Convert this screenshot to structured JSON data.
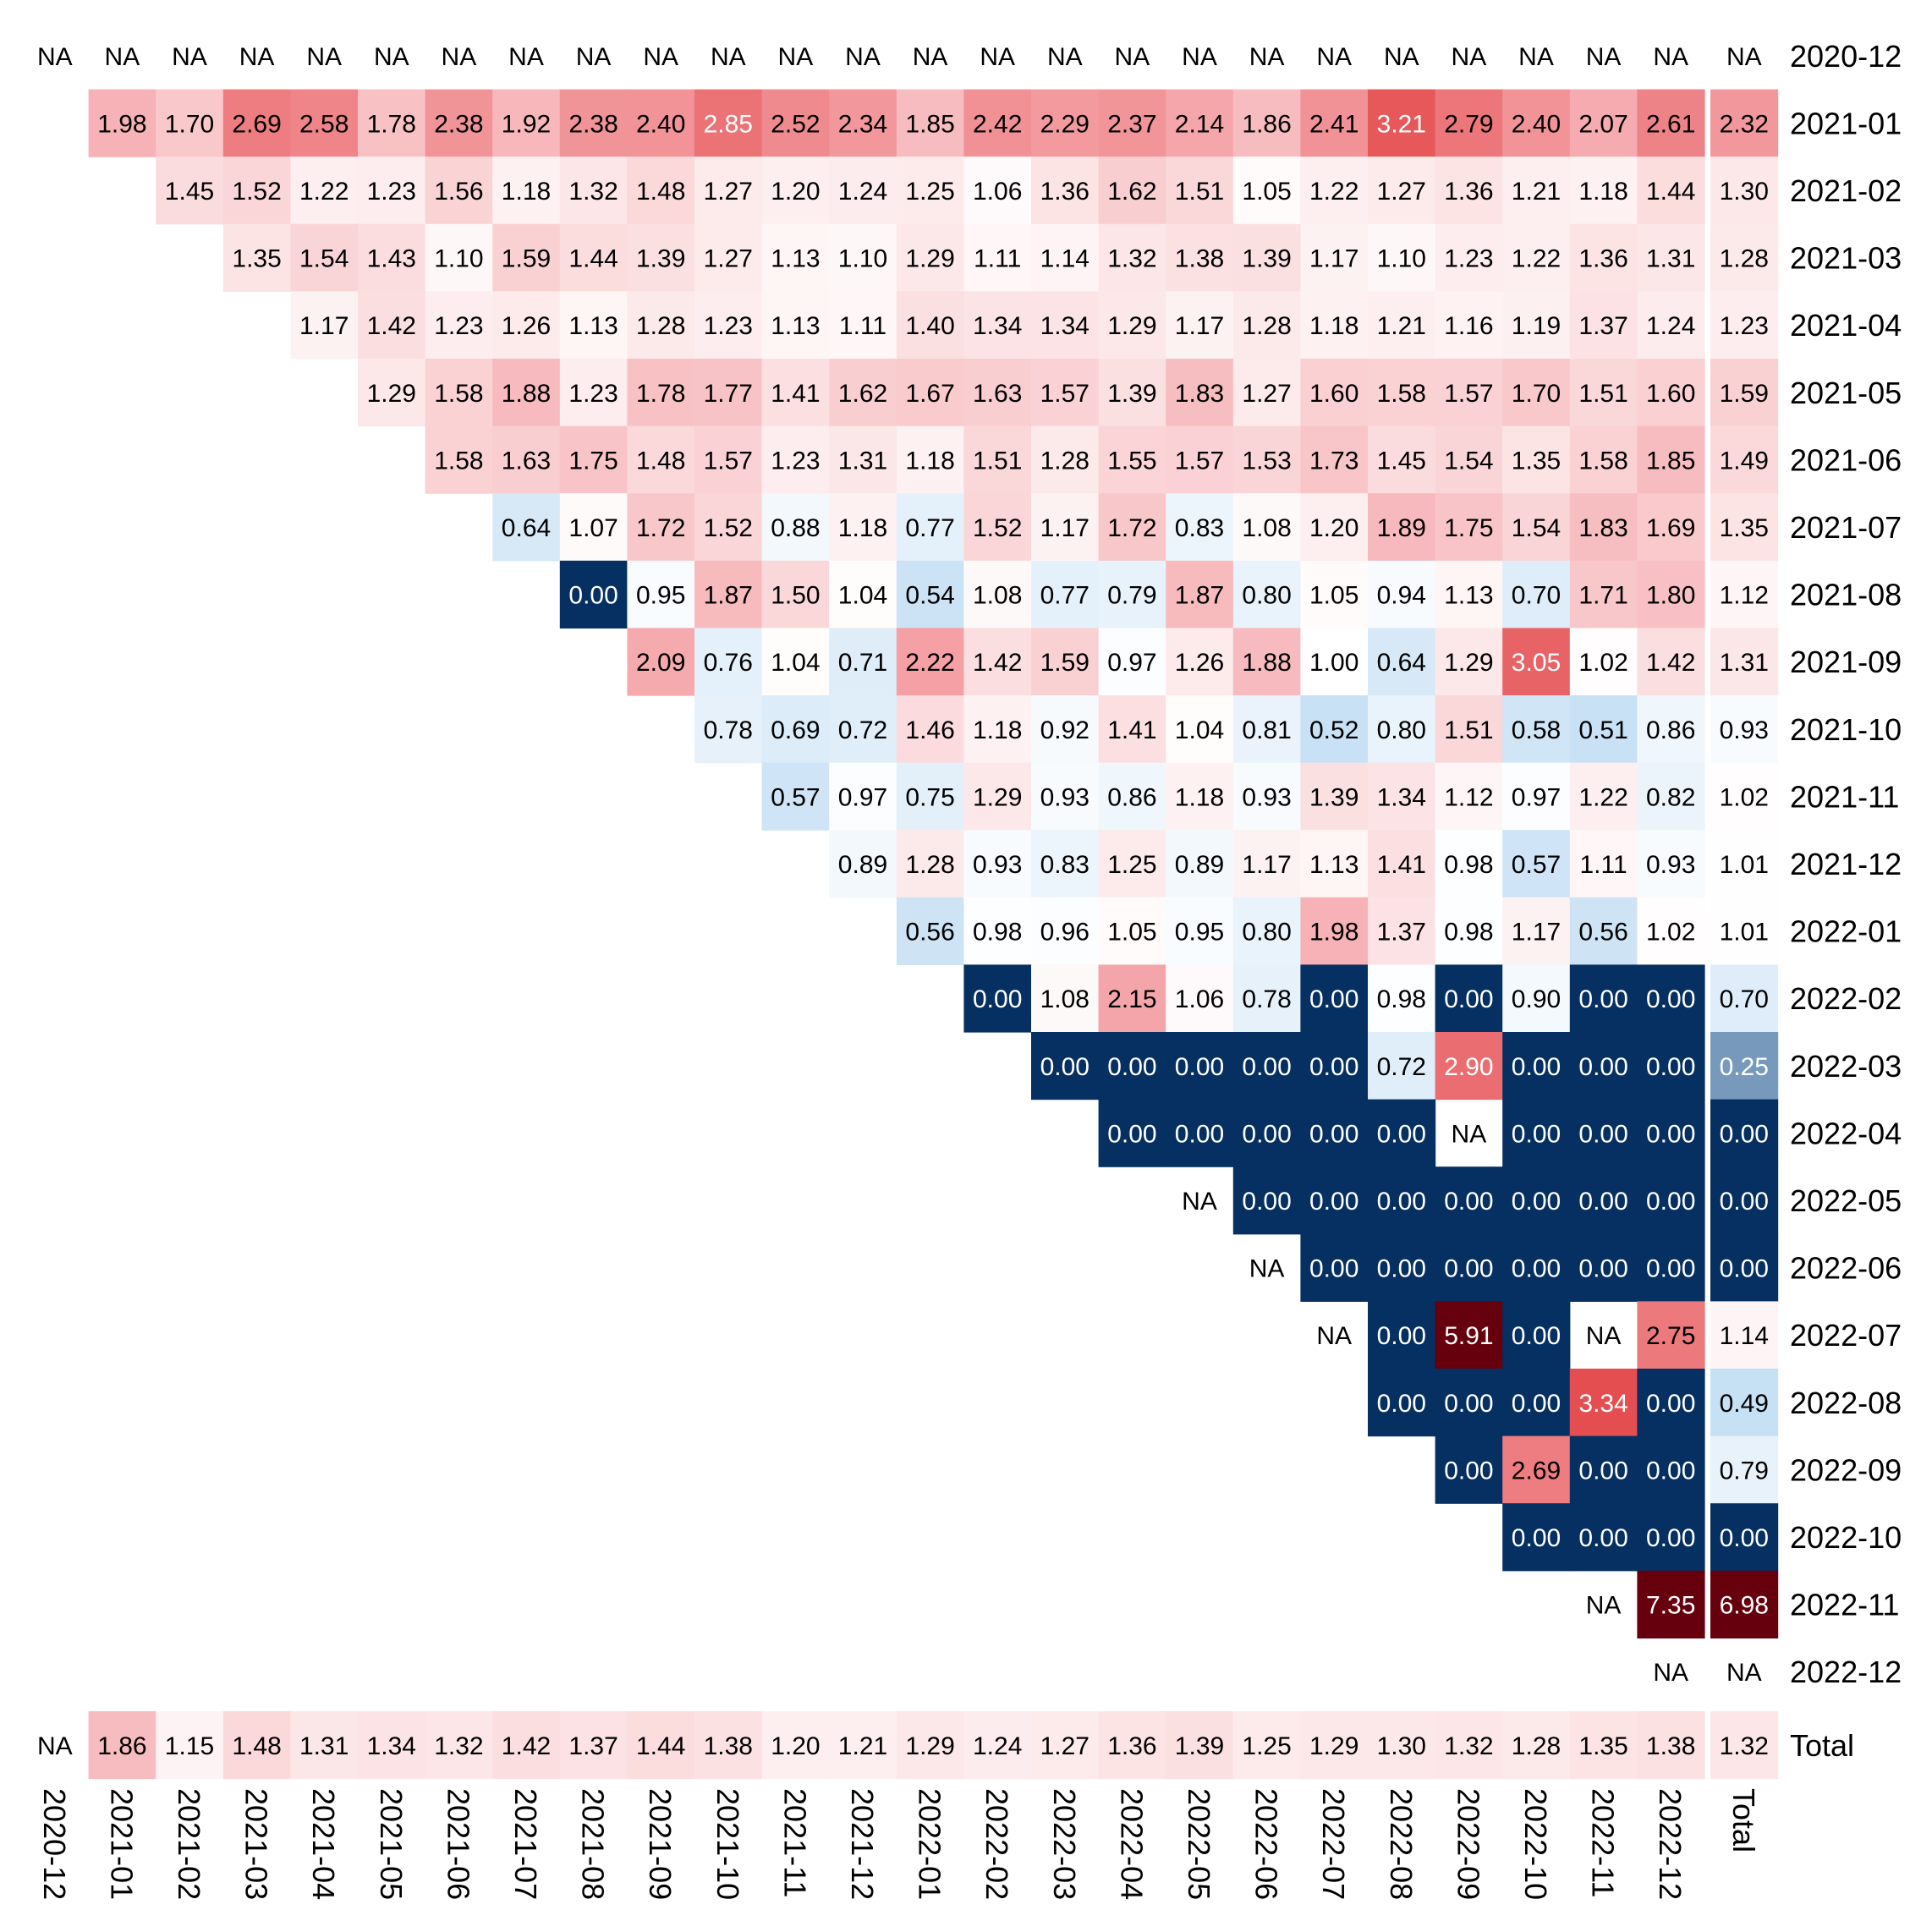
{
  "chart_data": {
    "type": "heatmap",
    "title": "",
    "xlabel": "",
    "ylabel": "",
    "grid": false,
    "legend": "none",
    "rows": [
      "2020-12",
      "2021-01",
      "2021-02",
      "2021-03",
      "2021-04",
      "2021-05",
      "2021-06",
      "2021-07",
      "2021-08",
      "2021-09",
      "2021-10",
      "2021-11",
      "2021-12",
      "2022-01",
      "2022-02",
      "2022-03",
      "2022-04",
      "2022-05",
      "2022-06",
      "2022-07",
      "2022-08",
      "2022-09",
      "2022-10",
      "2022-11",
      "2022-12"
    ],
    "columns": [
      "2020-12",
      "2021-01",
      "2021-02",
      "2021-03",
      "2021-04",
      "2021-05",
      "2021-06",
      "2021-07",
      "2021-08",
      "2021-09",
      "2021-10",
      "2021-11",
      "2021-12",
      "2022-01",
      "2022-02",
      "2022-03",
      "2022-04",
      "2022-05",
      "2022-06",
      "2022-07",
      "2022-08",
      "2022-09",
      "2022-10",
      "2022-11",
      "2022-12"
    ],
    "total_label": "Total",
    "na_label": "NA",
    "values": [
      [
        "NA",
        "NA",
        "NA",
        "NA",
        "NA",
        "NA",
        "NA",
        "NA",
        "NA",
        "NA",
        "NA",
        "NA",
        "NA",
        "NA",
        "NA",
        "NA",
        "NA",
        "NA",
        "NA",
        "NA",
        "NA",
        "NA",
        "NA",
        "NA",
        "NA"
      ],
      [
        null,
        "1.98",
        "1.70",
        "2.69",
        "2.58",
        "1.78",
        "2.38",
        "1.92",
        "2.38",
        "2.40",
        "2.85",
        "2.52",
        "2.34",
        "1.85",
        "2.42",
        "2.29",
        "2.37",
        "2.14",
        "1.86",
        "2.41",
        "3.21",
        "2.79",
        "2.40",
        "2.07",
        "2.61"
      ],
      [
        null,
        null,
        "1.45",
        "1.52",
        "1.22",
        "1.23",
        "1.56",
        "1.18",
        "1.32",
        "1.48",
        "1.27",
        "1.20",
        "1.24",
        "1.25",
        "1.06",
        "1.36",
        "1.62",
        "1.51",
        "1.05",
        "1.22",
        "1.27",
        "1.36",
        "1.21",
        "1.18",
        "1.44"
      ],
      [
        null,
        null,
        null,
        "1.35",
        "1.54",
        "1.43",
        "1.10",
        "1.59",
        "1.44",
        "1.39",
        "1.27",
        "1.13",
        "1.10",
        "1.29",
        "1.11",
        "1.14",
        "1.32",
        "1.38",
        "1.39",
        "1.17",
        "1.10",
        "1.23",
        "1.22",
        "1.36",
        "1.31"
      ],
      [
        null,
        null,
        null,
        null,
        "1.17",
        "1.42",
        "1.23",
        "1.26",
        "1.13",
        "1.28",
        "1.23",
        "1.13",
        "1.11",
        "1.40",
        "1.34",
        "1.34",
        "1.29",
        "1.17",
        "1.28",
        "1.18",
        "1.21",
        "1.16",
        "1.19",
        "1.37",
        "1.24"
      ],
      [
        null,
        null,
        null,
        null,
        null,
        "1.29",
        "1.58",
        "1.88",
        "1.23",
        "1.78",
        "1.77",
        "1.41",
        "1.62",
        "1.67",
        "1.63",
        "1.57",
        "1.39",
        "1.83",
        "1.27",
        "1.60",
        "1.58",
        "1.57",
        "1.70",
        "1.51",
        "1.60"
      ],
      [
        null,
        null,
        null,
        null,
        null,
        null,
        "1.58",
        "1.63",
        "1.75",
        "1.48",
        "1.57",
        "1.23",
        "1.31",
        "1.18",
        "1.51",
        "1.28",
        "1.55",
        "1.57",
        "1.53",
        "1.73",
        "1.45",
        "1.54",
        "1.35",
        "1.58",
        "1.85"
      ],
      [
        null,
        null,
        null,
        null,
        null,
        null,
        null,
        "0.64",
        "1.07",
        "1.72",
        "1.52",
        "0.88",
        "1.18",
        "0.77",
        "1.52",
        "1.17",
        "1.72",
        "0.83",
        "1.08",
        "1.20",
        "1.89",
        "1.75",
        "1.54",
        "1.83",
        "1.69"
      ],
      [
        null,
        null,
        null,
        null,
        null,
        null,
        null,
        null,
        "0.00",
        "0.95",
        "1.87",
        "1.50",
        "1.04",
        "0.54",
        "1.08",
        "0.77",
        "0.79",
        "1.87",
        "0.80",
        "1.05",
        "0.94",
        "1.13",
        "0.70",
        "1.71",
        "1.80"
      ],
      [
        null,
        null,
        null,
        null,
        null,
        null,
        null,
        null,
        null,
        "2.09",
        "0.76",
        "1.04",
        "0.71",
        "2.22",
        "1.42",
        "1.59",
        "0.97",
        "1.26",
        "1.88",
        "1.00",
        "0.64",
        "1.29",
        "3.05",
        "1.02",
        "1.42"
      ],
      [
        null,
        null,
        null,
        null,
        null,
        null,
        null,
        null,
        null,
        null,
        "0.78",
        "0.69",
        "0.72",
        "1.46",
        "1.18",
        "0.92",
        "1.41",
        "1.04",
        "0.81",
        "0.52",
        "0.80",
        "1.51",
        "0.58",
        "0.51",
        "0.86"
      ],
      [
        null,
        null,
        null,
        null,
        null,
        null,
        null,
        null,
        null,
        null,
        null,
        "0.57",
        "0.97",
        "0.75",
        "1.29",
        "0.93",
        "0.86",
        "1.18",
        "0.93",
        "1.39",
        "1.34",
        "1.12",
        "0.97",
        "1.22",
        "0.82"
      ],
      [
        null,
        null,
        null,
        null,
        null,
        null,
        null,
        null,
        null,
        null,
        null,
        null,
        "0.89",
        "1.28",
        "0.93",
        "0.83",
        "1.25",
        "0.89",
        "1.17",
        "1.13",
        "1.41",
        "0.98",
        "0.57",
        "1.11",
        "0.93"
      ],
      [
        null,
        null,
        null,
        null,
        null,
        null,
        null,
        null,
        null,
        null,
        null,
        null,
        null,
        "0.56",
        "0.98",
        "0.96",
        "1.05",
        "0.95",
        "0.80",
        "1.98",
        "1.37",
        "0.98",
        "1.17",
        "0.56",
        "1.02"
      ],
      [
        null,
        null,
        null,
        null,
        null,
        null,
        null,
        null,
        null,
        null,
        null,
        null,
        null,
        null,
        "0.00",
        "1.08",
        "2.15",
        "1.06",
        "0.78",
        "0.00",
        "0.98",
        "0.00",
        "0.90",
        "0.00",
        "0.00"
      ],
      [
        null,
        null,
        null,
        null,
        null,
        null,
        null,
        null,
        null,
        null,
        null,
        null,
        null,
        null,
        null,
        "0.00",
        "0.00",
        "0.00",
        "0.00",
        "0.00",
        "0.72",
        "2.90",
        "0.00",
        "0.00",
        "0.00"
      ],
      [
        null,
        null,
        null,
        null,
        null,
        null,
        null,
        null,
        null,
        null,
        null,
        null,
        null,
        null,
        null,
        null,
        "0.00",
        "0.00",
        "0.00",
        "0.00",
        "0.00",
        "NA",
        "0.00",
        "0.00",
        "0.00"
      ],
      [
        null,
        null,
        null,
        null,
        null,
        null,
        null,
        null,
        null,
        null,
        null,
        null,
        null,
        null,
        null,
        null,
        null,
        "NA",
        "0.00",
        "0.00",
        "0.00",
        "0.00",
        "0.00",
        "0.00",
        "0.00"
      ],
      [
        null,
        null,
        null,
        null,
        null,
        null,
        null,
        null,
        null,
        null,
        null,
        null,
        null,
        null,
        null,
        null,
        null,
        null,
        "NA",
        "0.00",
        "0.00",
        "0.00",
        "0.00",
        "0.00",
        "0.00"
      ],
      [
        null,
        null,
        null,
        null,
        null,
        null,
        null,
        null,
        null,
        null,
        null,
        null,
        null,
        null,
        null,
        null,
        null,
        null,
        null,
        "NA",
        "0.00",
        "5.91",
        "0.00",
        "NA",
        "2.75"
      ],
      [
        null,
        null,
        null,
        null,
        null,
        null,
        null,
        null,
        null,
        null,
        null,
        null,
        null,
        null,
        null,
        null,
        null,
        null,
        null,
        null,
        "0.00",
        "0.00",
        "0.00",
        "3.34",
        "0.00"
      ],
      [
        null,
        null,
        null,
        null,
        null,
        null,
        null,
        null,
        null,
        null,
        null,
        null,
        null,
        null,
        null,
        null,
        null,
        null,
        null,
        null,
        null,
        "0.00",
        "2.69",
        "0.00",
        "0.00"
      ],
      [
        null,
        null,
        null,
        null,
        null,
        null,
        null,
        null,
        null,
        null,
        null,
        null,
        null,
        null,
        null,
        null,
        null,
        null,
        null,
        null,
        null,
        null,
        "0.00",
        "0.00",
        "0.00"
      ],
      [
        null,
        null,
        null,
        null,
        null,
        null,
        null,
        null,
        null,
        null,
        null,
        null,
        null,
        null,
        null,
        null,
        null,
        null,
        null,
        null,
        null,
        null,
        null,
        "NA",
        "7.35"
      ],
      [
        null,
        null,
        null,
        null,
        null,
        null,
        null,
        null,
        null,
        null,
        null,
        null,
        null,
        null,
        null,
        null,
        null,
        null,
        null,
        null,
        null,
        null,
        null,
        null,
        "NA"
      ]
    ],
    "row_totals": [
      "NA",
      "2.32",
      "1.30",
      "1.28",
      "1.23",
      "1.59",
      "1.49",
      "1.35",
      "1.12",
      "1.31",
      "0.93",
      "1.02",
      "1.01",
      "1.01",
      "0.70",
      "0.25",
      "0.00",
      "0.00",
      "0.00",
      "1.14",
      "0.49",
      "0.79",
      "0.00",
      "6.98",
      "NA"
    ],
    "column_totals": [
      "NA",
      "1.86",
      "1.15",
      "1.48",
      "1.31",
      "1.34",
      "1.32",
      "1.42",
      "1.37",
      "1.44",
      "1.38",
      "1.20",
      "1.21",
      "1.29",
      "1.24",
      "1.27",
      "1.36",
      "1.39",
      "1.25",
      "1.29",
      "1.30",
      "1.32",
      "1.28",
      "1.35",
      "1.38"
    ],
    "grand_total": "1.32",
    "colors": {
      "low": "#053061",
      "mid_low": "#bcdaf2",
      "neutral": "#ffffff",
      "mid_high": "#f4a1a6",
      "high": "#e34a4b",
      "extreme": "#67000d",
      "text_dark": "#000000",
      "text_light": "#ffffff"
    }
  }
}
